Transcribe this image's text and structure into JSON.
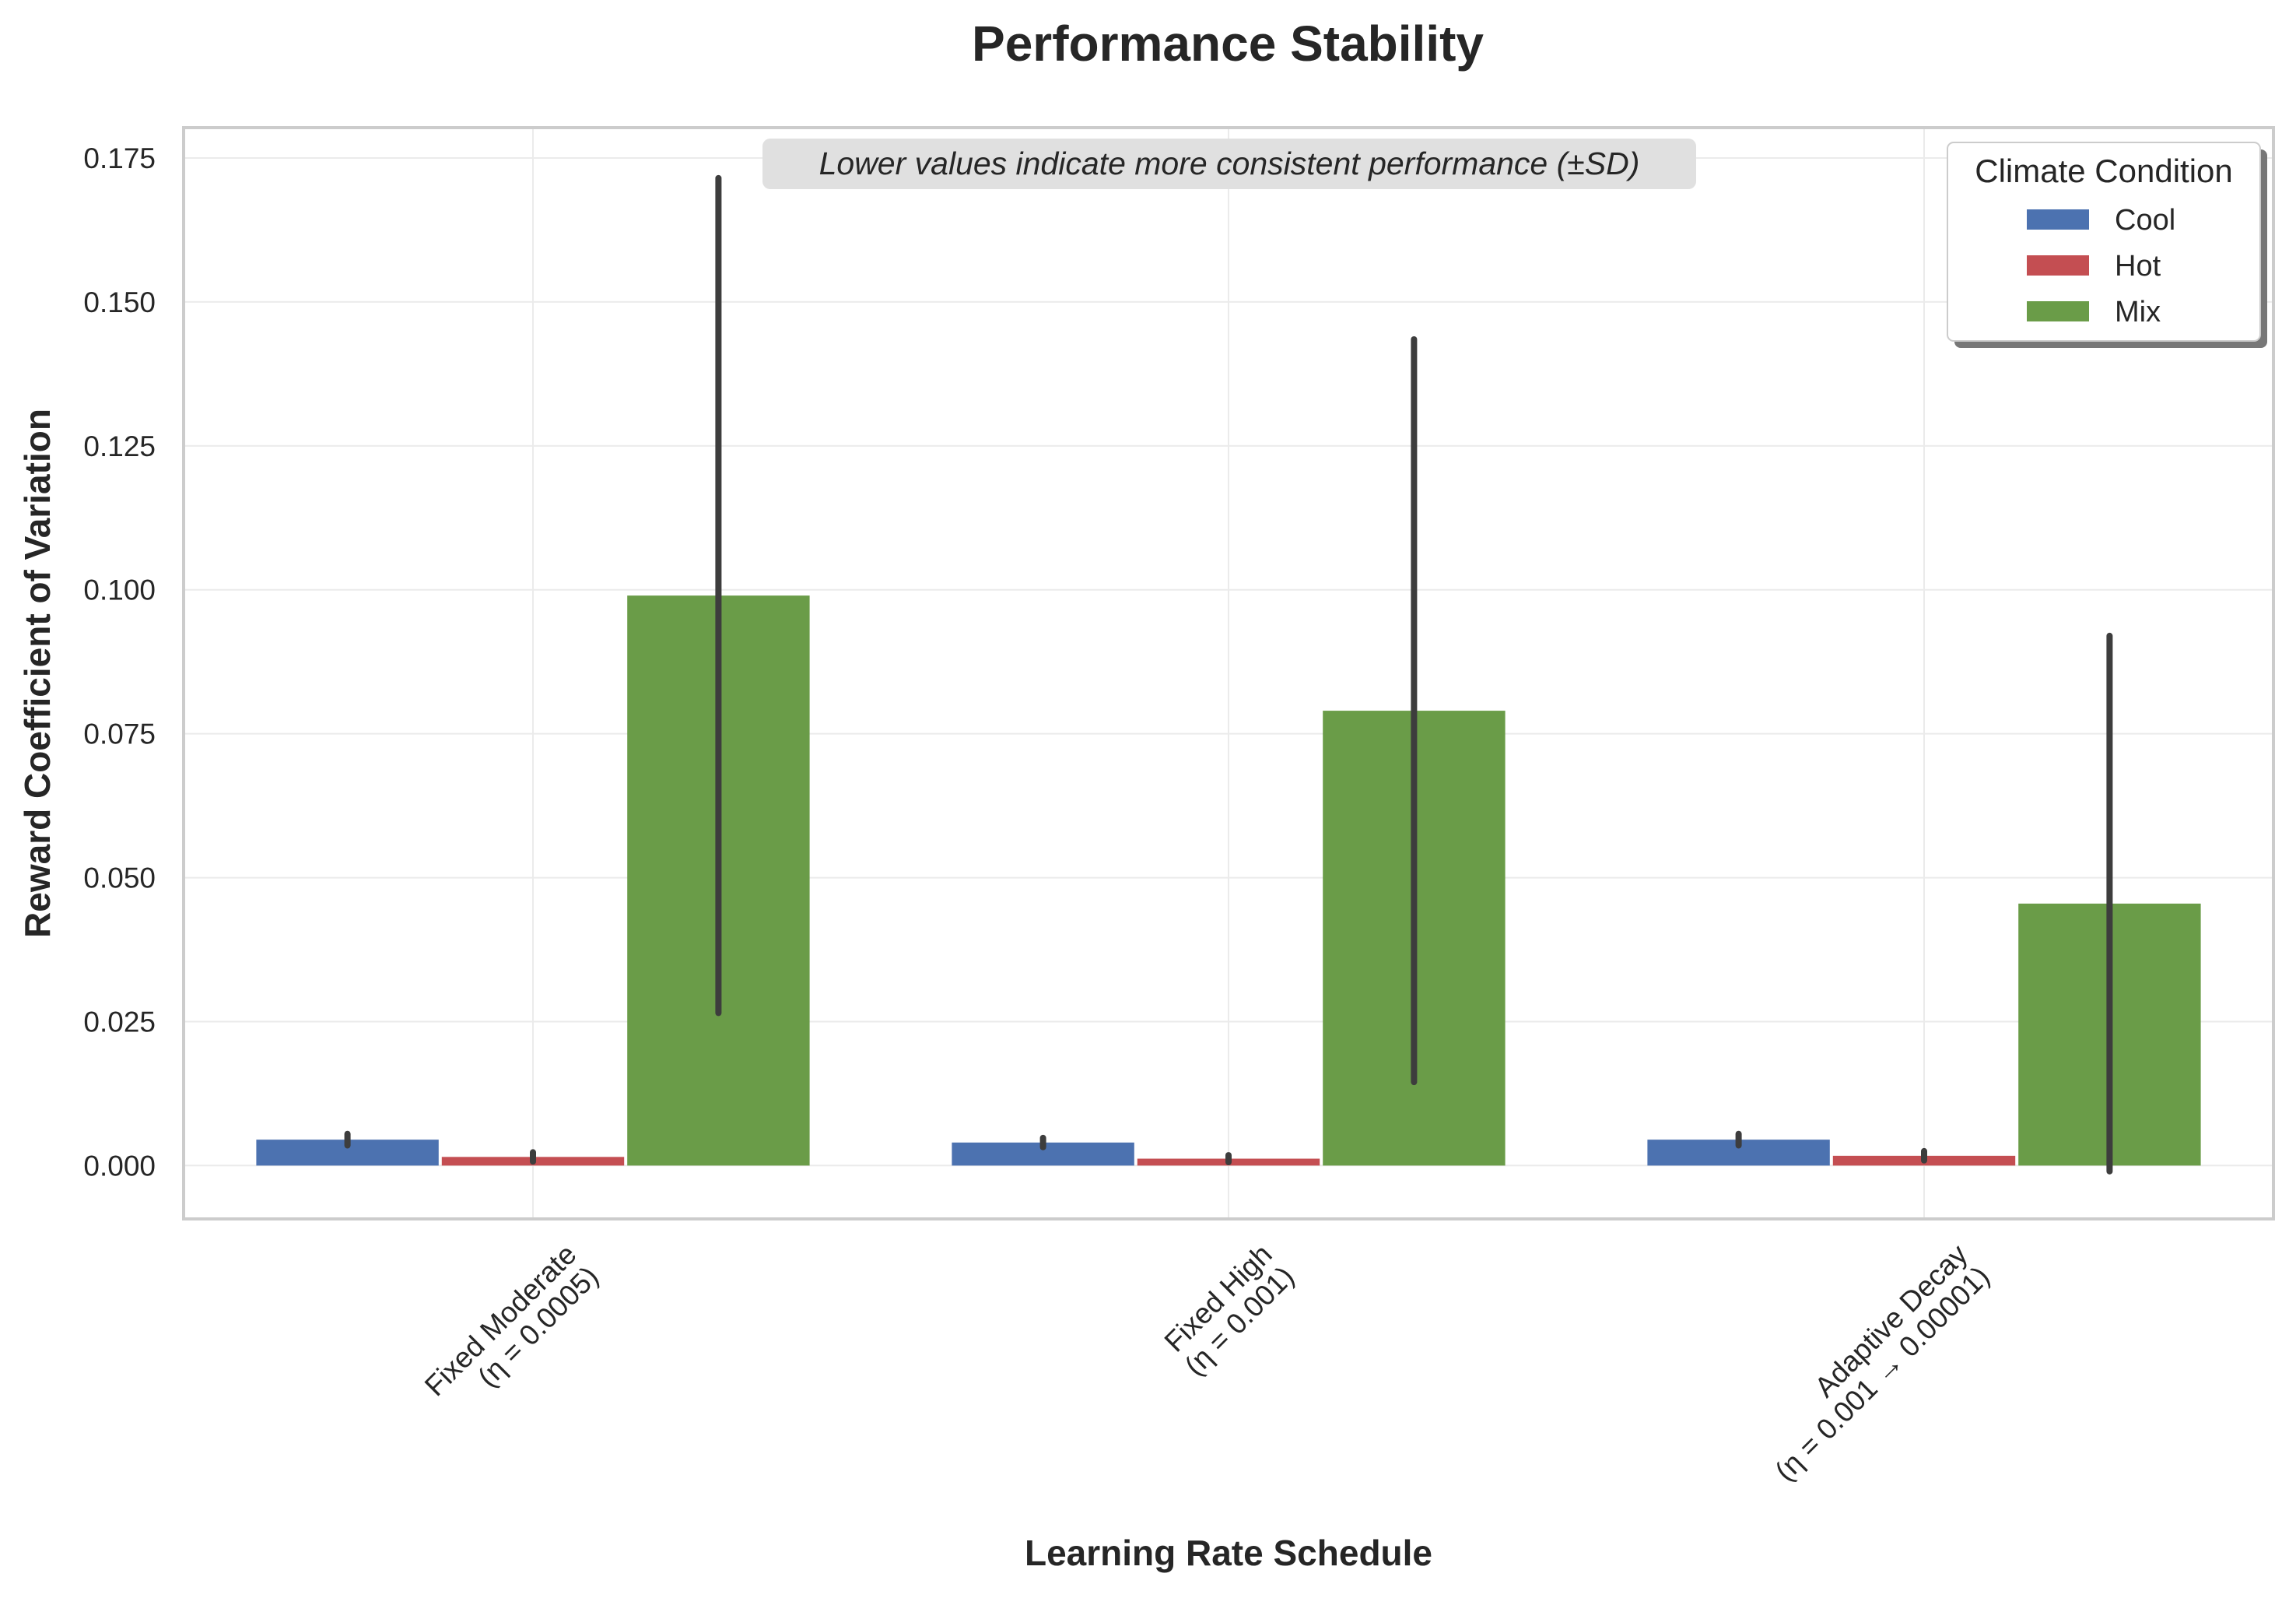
{
  "chart_data": {
    "type": "bar",
    "title": "Performance Stability",
    "xlabel": "Learning Rate Schedule",
    "ylabel": "Reward Coefficient of Variation",
    "categories": [
      [
        "Fixed Moderate",
        "(η = 0.0005)"
      ],
      [
        "Fixed High",
        "(η = 0.001)"
      ],
      [
        "Adaptive Decay",
        "(η = 0.001 → 0.00001)"
      ]
    ],
    "series": [
      {
        "name": "Cool",
        "color": "#4c72b0",
        "values": [
          0.0045,
          0.004,
          0.0045
        ],
        "errors": [
          0.001,
          0.0008,
          0.001
        ]
      },
      {
        "name": "Hot",
        "color": "#c44e52",
        "values": [
          0.0015,
          0.0012,
          0.0017
        ],
        "errors": [
          0.0008,
          0.0006,
          0.0008
        ]
      },
      {
        "name": "Mix",
        "color": "#6a9c48",
        "values": [
          0.099,
          0.079,
          0.0455
        ],
        "errors": [
          0.0725,
          0.0645,
          0.0465
        ]
      }
    ],
    "ylim": [
      -0.009,
      0.18
    ],
    "yticks": [
      0.0,
      0.025,
      0.05,
      0.075,
      0.1,
      0.125,
      0.15,
      0.175
    ],
    "ytick_labels": [
      "0.000",
      "0.025",
      "0.050",
      "0.075",
      "0.100",
      "0.125",
      "0.150",
      "0.175"
    ],
    "grid": true,
    "legend": {
      "title": "Climate Condition",
      "position": "upper right"
    },
    "annotation": "Lower values indicate more consistent performance (±SD)"
  }
}
